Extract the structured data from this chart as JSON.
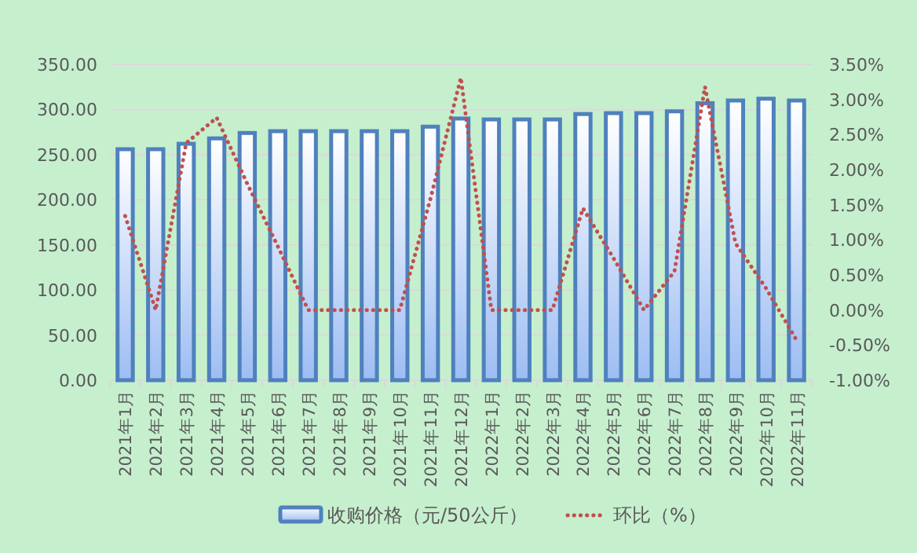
{
  "chart_data": {
    "type": "bar",
    "categories": [
      "2021年1月",
      "2021年2月",
      "2021年3月",
      "2021年4月",
      "2021年5月",
      "2021年6月",
      "2021年7月",
      "2021年8月",
      "2021年9月",
      "2021年10月",
      "2021年11月",
      "2021年12月",
      "2022年1月",
      "2022年2月",
      "2022年3月",
      "2022年4月",
      "2022年5月",
      "2022年6月",
      "2022年7月",
      "2022年8月",
      "2022年9月",
      "2022年10月",
      "2022年11月"
    ],
    "series": [
      {
        "name": "收购价格（元/50公斤）",
        "color": "#4f81bd",
        "values": [
          256,
          256,
          262,
          268,
          274,
          276,
          276,
          276,
          276,
          276,
          281,
          290,
          289,
          289,
          289,
          295,
          296,
          296,
          298,
          307,
          310,
          312,
          310
        ]
      },
      {
        "name": "环比（%）",
        "type": "line",
        "axis": "y2",
        "line_style": "dotted",
        "color": "#c0504d",
        "values": [
          1.34,
          0,
          2.38,
          2.74,
          1.8,
          0.91,
          0,
          0,
          0,
          0,
          1.58,
          3.31,
          0,
          0,
          0,
          1.45,
          0.74,
          0,
          0.55,
          3.18,
          0.95,
          0.31,
          -0.43
        ]
      }
    ],
    "ylim": [
      0,
      350
    ],
    "yticks": [
      {
        "value": 0,
        "label": "0.00"
      },
      {
        "value": 50,
        "label": "50.00"
      },
      {
        "value": 100,
        "label": "100.00"
      },
      {
        "value": 150,
        "label": "150.00"
      },
      {
        "value": 200,
        "label": "200.00"
      },
      {
        "value": 250,
        "label": "250.00"
      },
      {
        "value": 300,
        "label": "300.00"
      },
      {
        "value": 350,
        "label": "350.00"
      }
    ],
    "y2lim": [
      -1,
      3.5
    ],
    "y2ticks": [
      {
        "value": -1,
        "label": "-1.00%"
      },
      {
        "value": -0.5,
        "label": "-0.50%"
      },
      {
        "value": 0,
        "label": "0.00%"
      },
      {
        "value": 0.5,
        "label": "0.50%"
      },
      {
        "value": 1,
        "label": "1.00%"
      },
      {
        "value": 1.5,
        "label": "1.50%"
      },
      {
        "value": 2,
        "label": "2.00%"
      },
      {
        "value": 2.5,
        "label": "2.50%"
      },
      {
        "value": 3,
        "label": "3.00%"
      },
      {
        "value": 3.5,
        "label": "3.50%"
      }
    ],
    "grid": "y",
    "legend": "bottom"
  }
}
